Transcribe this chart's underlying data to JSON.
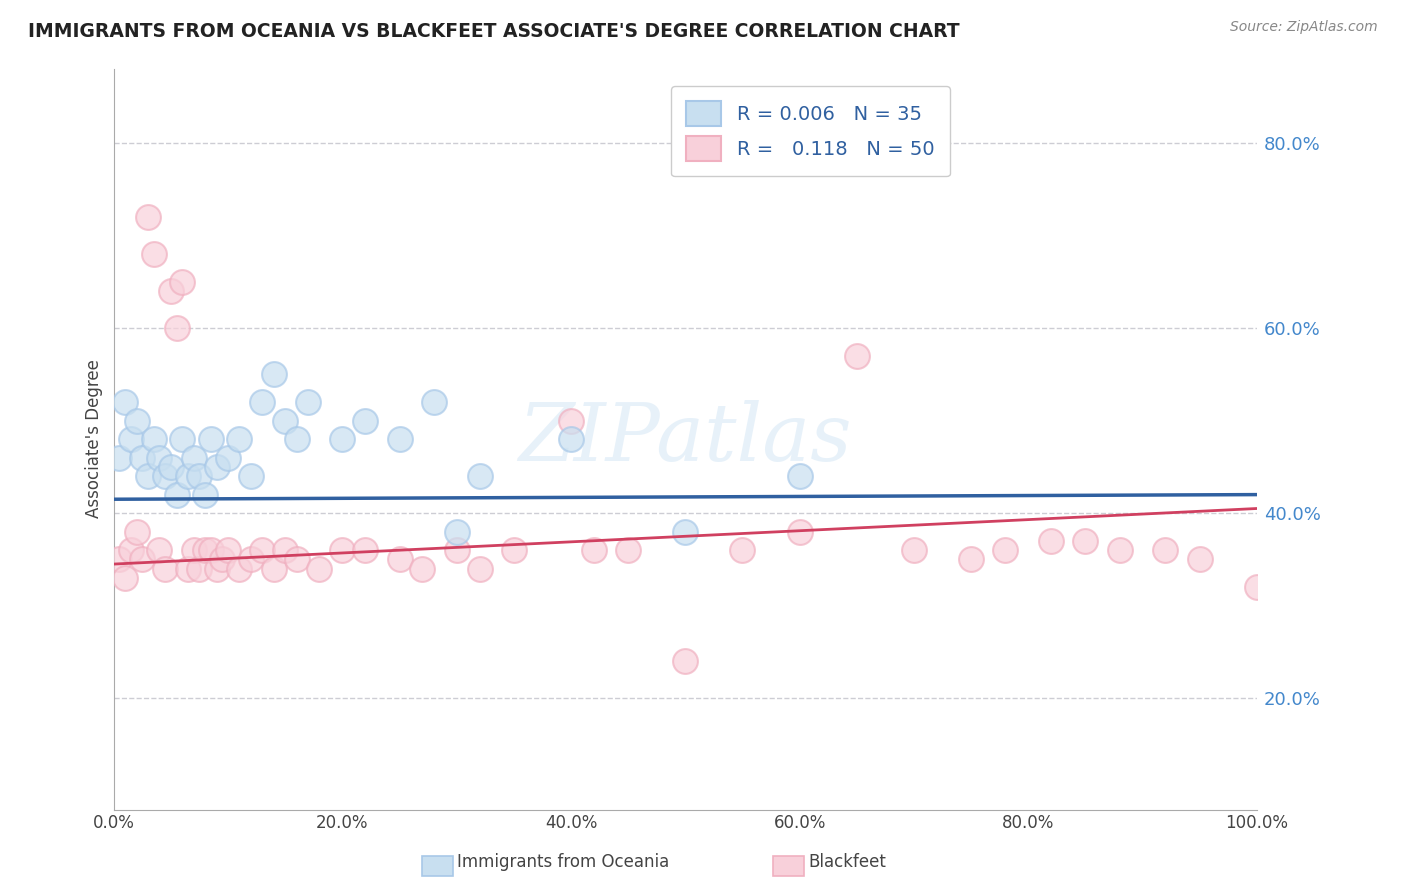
{
  "title": "IMMIGRANTS FROM OCEANIA VS BLACKFEET ASSOCIATE'S DEGREE CORRELATION CHART",
  "source": "Source: ZipAtlas.com",
  "ylabel": "Associate's Degree",
  "xlim": [
    0,
    100
  ],
  "ylim": [
    8,
    88
  ],
  "yticks": [
    20,
    40,
    60,
    80
  ],
  "xticks": [
    0,
    20,
    40,
    60,
    80,
    100
  ],
  "blue_R": "0.006",
  "blue_N": "35",
  "pink_R": "0.118",
  "pink_N": "50",
  "blue_color": "#a8c8e8",
  "pink_color": "#f0b0c0",
  "blue_fill_color": "#c8dff0",
  "pink_fill_color": "#f8d0da",
  "blue_line_color": "#3060a0",
  "pink_line_color": "#d04060",
  "blue_scatter_x": [
    0.5,
    1.0,
    1.5,
    2.0,
    2.5,
    3.0,
    3.5,
    4.0,
    4.5,
    5.0,
    5.5,
    6.0,
    6.5,
    7.0,
    7.5,
    8.0,
    8.5,
    9.0,
    10.0,
    11.0,
    12.0,
    13.0,
    14.0,
    15.0,
    16.0,
    17.0,
    20.0,
    22.0,
    25.0,
    28.0,
    30.0,
    32.0,
    40.0,
    50.0,
    60.0
  ],
  "blue_scatter_y": [
    46,
    52,
    48,
    50,
    46,
    44,
    48,
    46,
    44,
    45,
    42,
    48,
    44,
    46,
    44,
    42,
    48,
    45,
    46,
    48,
    44,
    52,
    55,
    50,
    48,
    52,
    48,
    50,
    48,
    52,
    38,
    44,
    48,
    38,
    44
  ],
  "pink_scatter_x": [
    0.5,
    1.0,
    1.5,
    2.0,
    2.5,
    3.0,
    3.5,
    4.0,
    4.5,
    5.0,
    5.5,
    6.0,
    6.5,
    7.0,
    7.5,
    8.0,
    8.5,
    9.0,
    9.5,
    10.0,
    11.0,
    12.0,
    13.0,
    14.0,
    15.0,
    16.0,
    18.0,
    20.0,
    22.0,
    25.0,
    27.0,
    30.0,
    32.0,
    35.0,
    40.0,
    42.0,
    45.0,
    50.0,
    55.0,
    60.0,
    65.0,
    70.0,
    75.0,
    78.0,
    82.0,
    85.0,
    88.0,
    92.0,
    95.0,
    100.0
  ],
  "pink_scatter_y": [
    35,
    33,
    36,
    38,
    35,
    72,
    68,
    36,
    34,
    64,
    60,
    65,
    34,
    36,
    34,
    36,
    36,
    34,
    35,
    36,
    34,
    35,
    36,
    34,
    36,
    35,
    34,
    36,
    36,
    35,
    34,
    36,
    34,
    36,
    50,
    36,
    36,
    24,
    36,
    38,
    57,
    36,
    35,
    36,
    37,
    37,
    36,
    36,
    35,
    32
  ],
  "background_color": "#ffffff",
  "grid_color": "#c8c8d0",
  "watermark_text": "ZIPatlas",
  "legend_blue_label": "Immigrants from Oceania",
  "legend_pink_label": "Blackfeet",
  "blue_trend_start_y": 41.5,
  "blue_trend_end_y": 42.0,
  "pink_trend_start_y": 34.5,
  "pink_trend_end_y": 40.5
}
